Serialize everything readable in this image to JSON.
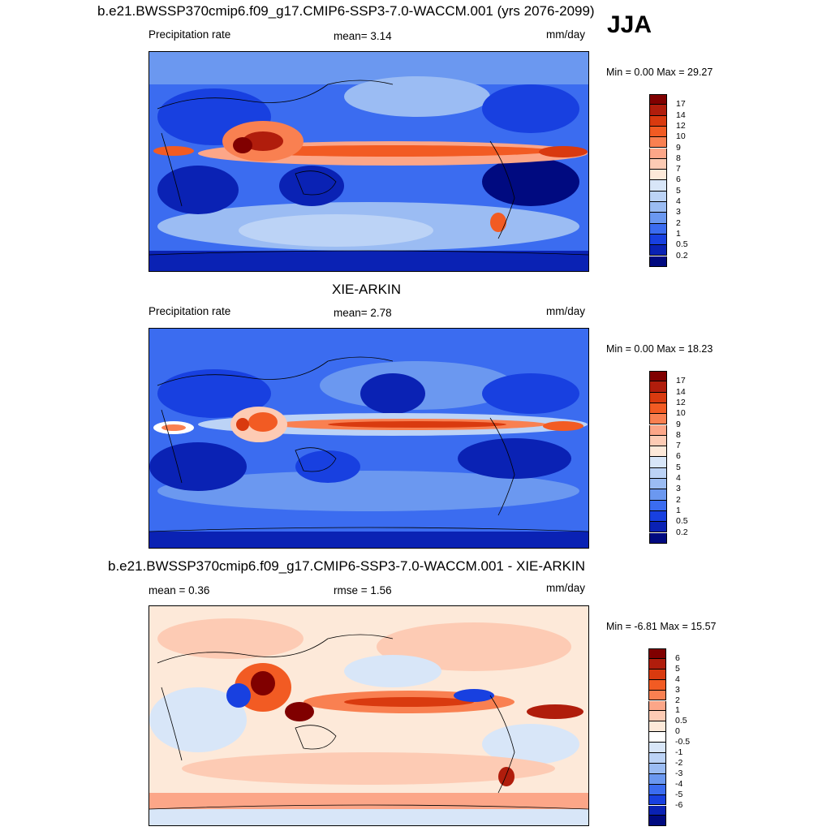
{
  "season": "JJA",
  "panels": [
    {
      "title": "b.e21.BWSSP370cmip6.f09_g17.CMIP6-SSP3-7.0-WACCM.001 (yrs 2076-2099)",
      "left_label": "Precipitation rate",
      "center_label": "mean=   3.14",
      "units": "mm/day",
      "minmax": "Min =   0.00 Max =  29.27",
      "colorbar_labels": [
        "17",
        "14",
        "12",
        "10",
        "9",
        "8",
        "7",
        "6",
        "5",
        "4",
        "3",
        "2",
        "1",
        "0.5",
        "0.2"
      ]
    },
    {
      "title": "XIE-ARKIN",
      "left_label": "Precipitation rate",
      "center_label": "mean=   2.78",
      "units": "mm/day",
      "minmax": "Min =   0.00 Max =  18.23",
      "colorbar_labels": [
        "17",
        "14",
        "12",
        "10",
        "9",
        "8",
        "7",
        "6",
        "5",
        "4",
        "3",
        "2",
        "1",
        "0.5",
        "0.2"
      ]
    },
    {
      "title": "b.e21.BWSSP370cmip6.f09_g17.CMIP6-SSP3-7.0-WACCM.001 - XIE-ARKIN",
      "left_label": "mean =   0.36",
      "center_label": "rmse =   1.56",
      "units": "mm/day",
      "minmax": "Min =  -6.81 Max =  15.57",
      "colorbar_labels": [
        "6",
        "5",
        "4",
        "3",
        "2",
        "1",
        "0.5",
        "0",
        "-0.5",
        "-1",
        "-2",
        "-3",
        "-4",
        "-5",
        "-6"
      ]
    }
  ],
  "colors": {
    "precip_scale": [
      "#800000",
      "#b01d0c",
      "#d93a0f",
      "#f25b23",
      "#f98051",
      "#fca688",
      "#fdcbb4",
      "#fde9d9",
      "#d8e6f8",
      "#bcd3f6",
      "#9bbcf3",
      "#6b98f0",
      "#3b6cf0",
      "#1840e0",
      "#0a22b4",
      "#000a80"
    ],
    "diff_scale": [
      "#800000",
      "#b01d0c",
      "#d93a0f",
      "#f25b23",
      "#f98051",
      "#fca688",
      "#fdcbb4",
      "#fde9d9",
      "#ffffff",
      "#d8e6f8",
      "#bcd3f6",
      "#9bbcf3",
      "#6b98f0",
      "#3b6cf0",
      "#1840e0",
      "#0a22b4",
      "#000a80"
    ]
  }
}
